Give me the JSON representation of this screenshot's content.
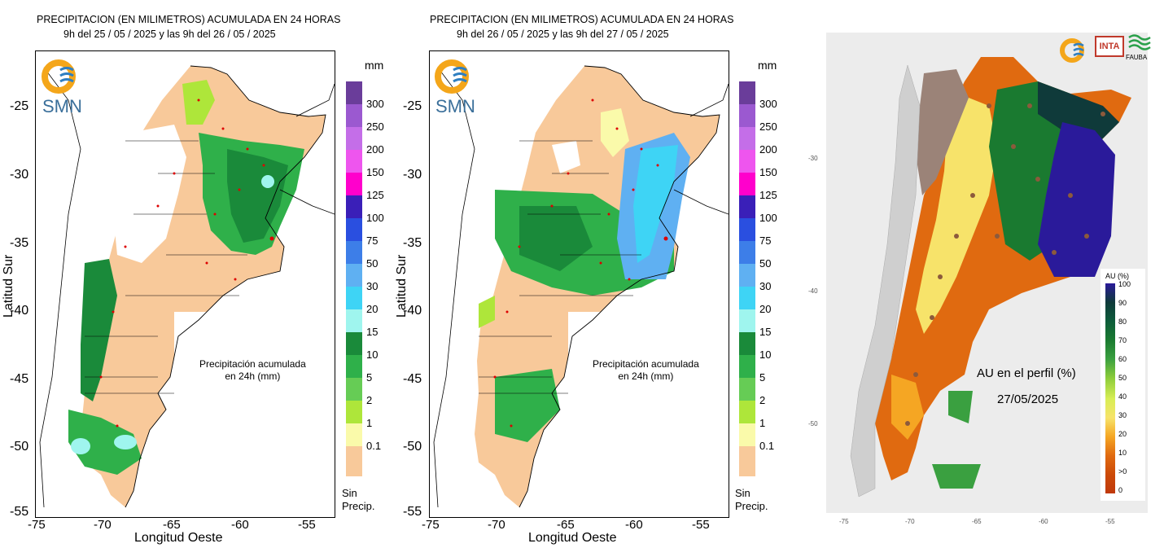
{
  "map1": {
    "title_line1": "PRECIPITACION (EN MILIMETROS) ACUMULADA EN 24 HORAS",
    "title_line2": "9h del 25 / 05 / 2025  y las 9h del 26 / 05 / 2025",
    "annotation_line1": "Precipitación acumulada",
    "annotation_line2": "en 24h (mm)"
  },
  "map2": {
    "title_line1": "PRECIPITACION (EN MILIMETROS) ACUMULADA EN 24 HORAS",
    "title_line2": "9h del 26 / 05 / 2025  y las 9h del 27 / 05 / 2025",
    "annotation_line1": "Precipitación acumulada",
    "annotation_line2": "en 24h (mm)"
  },
  "precip_axes": {
    "y_title": "Latitud Sur",
    "x_title": "Longitud Oeste",
    "y_ticks": [
      "-25",
      "-30",
      "-35",
      "-40",
      "-45",
      "-50",
      "-55"
    ],
    "x_ticks": [
      "-75",
      "-70",
      "-65",
      "-60",
      "-55"
    ]
  },
  "precip_legend": {
    "unit": "mm",
    "levels": [
      "300",
      "250",
      "200",
      "150",
      "125",
      "100",
      "75",
      "50",
      "30",
      "20",
      "15",
      "10",
      "5",
      "2",
      "1",
      "0.1"
    ],
    "colors": [
      "#6a3d9a",
      "#9b59d0",
      "#c46ee8",
      "#ee55ee",
      "#ff00cc",
      "#3a1fb8",
      "#2a4fe0",
      "#3d7ee8",
      "#5fb0f2",
      "#3ed4f5",
      "#9ff5ee",
      "#1a8a3a",
      "#2fb04a",
      "#66cc55",
      "#aee63a",
      "#fafaaa",
      "#f8c99a"
    ],
    "no_precip_line1": "Sin",
    "no_precip_line2": "Precip."
  },
  "smn_logo": "SMN",
  "map3": {
    "annotation_line1": "AU en el perfil (%)",
    "annotation_line2": "27/05/2025",
    "legend_title": "AU (%)",
    "legend_levels": [
      "100",
      "90",
      "80",
      "70",
      "60",
      "50",
      "40",
      "30",
      "20",
      "10",
      ">0",
      "0"
    ],
    "legend_colors": [
      "#2a1a9a",
      "#0f3a3a",
      "#0d5c3a",
      "#1a7a30",
      "#3aa040",
      "#8ccc3a",
      "#d8ee55",
      "#f7e36a",
      "#f5a623",
      "#e06a10",
      "#cc4a08",
      "#c0390b"
    ],
    "y_ticks": [
      "-30",
      "-40",
      "-50"
    ],
    "x_ticks": [
      "-75",
      "-70",
      "-65",
      "-60",
      "-55"
    ],
    "logo_inta": "INTA",
    "logo_fauba": "FAUBA"
  },
  "chart_data": [
    {
      "type": "heatmap",
      "title": "PRECIPITACION (EN MILIMETROS) ACUMULADA EN 24 HORAS",
      "subtitle": "9h del 25 / 05 / 2025  y las 9h del 26 / 05 / 2025",
      "xlabel": "Longitud Oeste",
      "ylabel": "Latitud Sur",
      "xlim": [
        -75,
        -52
      ],
      "ylim": [
        -55,
        -21
      ],
      "legend_title": "mm"
    },
    {
      "type": "heatmap",
      "title": "PRECIPITACION (EN MILIMETROS) ACUMULADA EN 24 HORAS",
      "subtitle": "9h del 26 / 05 / 2025  y las 9h del 27 / 05 / 2025",
      "xlabel": "Longitud Oeste",
      "ylabel": "Latitud Sur",
      "xlim": [
        -75,
        -52
      ],
      "ylim": [
        -55,
        -21
      ],
      "legend_title": "mm"
    },
    {
      "type": "heatmap",
      "title": "AU en el perfil (%)",
      "subtitle": "27/05/2025",
      "legend_title": "AU (%)",
      "xlim": [
        -77,
        -52
      ],
      "ylim": [
        -56,
        -21
      ]
    }
  ]
}
